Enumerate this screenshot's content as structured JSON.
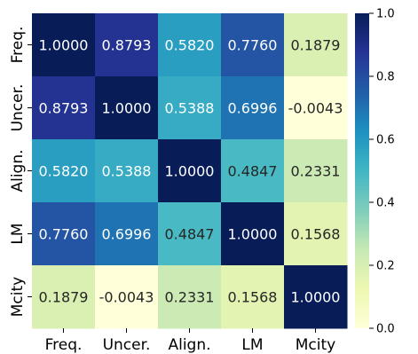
{
  "chart_data": {
    "type": "heatmap",
    "title": "",
    "xlabel": "",
    "ylabel": "",
    "x_labels": [
      "Freq.",
      "Uncer.",
      "Align.",
      "LM",
      "Mcity"
    ],
    "y_labels": [
      "Freq.",
      "Uncer.",
      "Align.",
      "LM",
      "Mcity"
    ],
    "values": [
      [
        1.0,
        0.8793,
        0.582,
        0.776,
        0.1879
      ],
      [
        0.8793,
        1.0,
        0.5388,
        0.6996,
        -0.0043
      ],
      [
        0.582,
        0.5388,
        1.0,
        0.4847,
        0.2331
      ],
      [
        0.776,
        0.6996,
        0.4847,
        1.0,
        0.1568
      ],
      [
        0.1879,
        -0.0043,
        0.2331,
        0.1568,
        1.0
      ]
    ],
    "cell_labels": [
      [
        "1.0000",
        "0.8793",
        "0.5820",
        "0.7760",
        "0.1879"
      ],
      [
        "0.8793",
        "1.0000",
        "0.5388",
        "0.6996",
        "-0.0043"
      ],
      [
        "0.5820",
        "0.5388",
        "1.0000",
        "0.4847",
        "0.2331"
      ],
      [
        "0.7760",
        "0.6996",
        "0.4847",
        "1.0000",
        "0.1568"
      ],
      [
        "0.1879",
        "-0.0043",
        "0.2331",
        "0.1568",
        "1.0000"
      ]
    ],
    "colorbar": {
      "range": [
        0.0,
        1.0
      ],
      "ticks": [
        "0.0",
        "0.2",
        "0.4",
        "0.6",
        "0.8",
        "1.0"
      ],
      "colormap": "YlGnBu"
    },
    "grid": false
  }
}
